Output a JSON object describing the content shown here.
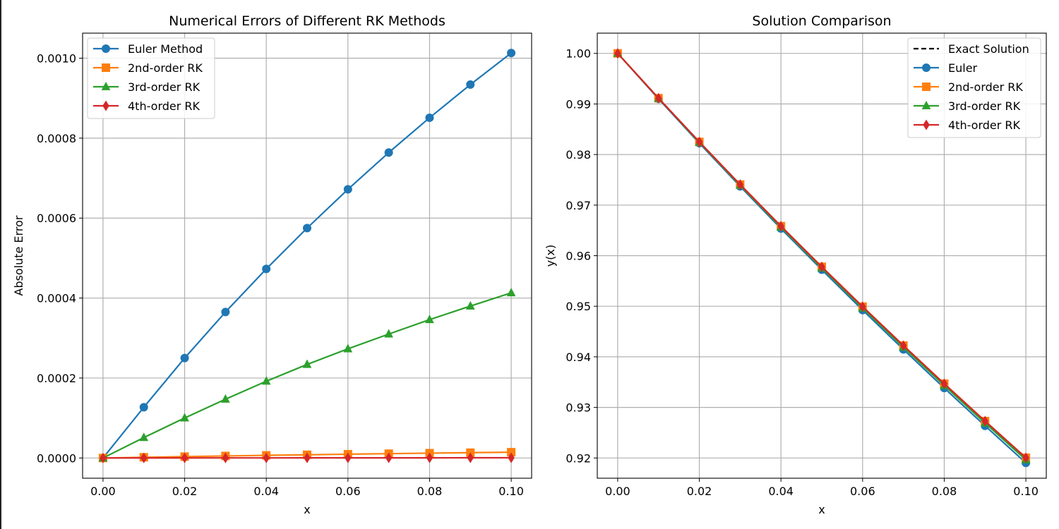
{
  "chart_data": [
    {
      "type": "line",
      "title": "Numerical Errors of Different RK Methods",
      "xlabel": "x",
      "ylabel": "Absolute Error",
      "xlim": [
        -0.005,
        0.105
      ],
      "ylim": [
        -5.06e-05,
        0.0010626
      ],
      "grid": true,
      "legend_position": "upper-left",
      "x": [
        0.0,
        0.01,
        0.02,
        0.03,
        0.04,
        0.05,
        0.06,
        0.07,
        0.08,
        0.09,
        0.1
      ],
      "x_ticks": [
        0.0,
        0.02,
        0.04,
        0.06,
        0.08,
        0.1
      ],
      "x_tick_labels": [
        "0.00",
        "0.02",
        "0.04",
        "0.06",
        "0.08",
        "0.10"
      ],
      "y_ticks": [
        0.0,
        0.0002,
        0.0004,
        0.0006,
        0.0008,
        0.001
      ],
      "y_tick_labels": [
        "0.0000",
        "0.0002",
        "0.0004",
        "0.0006",
        "0.0008",
        "0.0010"
      ],
      "series": [
        {
          "name": "Euler Method",
          "color": "#1f77b4",
          "marker": "circle",
          "values": [
            0.0,
            0.000127,
            0.00025,
            0.000365,
            0.000473,
            0.000575,
            0.000672,
            0.000764,
            0.000851,
            0.000934,
            0.001013
          ]
        },
        {
          "name": "2nd-order RK",
          "color": "#ff7f0e",
          "marker": "square",
          "values": [
            0.0,
            1.8e-06,
            3.5e-06,
            5.1e-06,
            6.6e-06,
            8.1e-06,
            9.5e-06,
            1.08e-05,
            1.21e-05,
            1.33e-05,
            1.45e-05
          ]
        },
        {
          "name": "3rd-order RK",
          "color": "#2ca02c",
          "marker": "triangle",
          "values": [
            0.0,
            5.1e-05,
            0.0001,
            0.000147,
            0.000192,
            0.000234,
            0.000273,
            0.00031,
            0.000346,
            0.00038,
            0.000413
          ]
        },
        {
          "name": "4th-order RK",
          "color": "#d62728",
          "marker": "diamond",
          "values": [
            0.0,
            1e-07,
            1e-07,
            2e-07,
            2e-07,
            3e-07,
            3e-07,
            4e-07,
            4e-07,
            5e-07,
            5e-07
          ]
        }
      ]
    },
    {
      "type": "line",
      "title": "Solution Comparison",
      "xlabel": "x",
      "ylabel": "y(x)",
      "xlim": [
        -0.005,
        0.105
      ],
      "ylim": [
        0.916,
        1.004
      ],
      "grid": true,
      "legend_position": "upper-right",
      "x": [
        0.0,
        0.01,
        0.02,
        0.03,
        0.04,
        0.05,
        0.06,
        0.07,
        0.08,
        0.09,
        0.1
      ],
      "x_ticks": [
        0.0,
        0.02,
        0.04,
        0.06,
        0.08,
        0.1
      ],
      "x_tick_labels": [
        "0.00",
        "0.02",
        "0.04",
        "0.06",
        "0.08",
        "0.10"
      ],
      "y_ticks": [
        0.92,
        0.93,
        0.94,
        0.95,
        0.96,
        0.97,
        0.98,
        0.99,
        1.0
      ],
      "y_tick_labels": [
        "0.92",
        "0.93",
        "0.94",
        "0.95",
        "0.96",
        "0.97",
        "0.98",
        "0.99",
        "1.00"
      ],
      "series": [
        {
          "name": "Exact Solution",
          "color": "#000000",
          "marker": "none",
          "dashed": true,
          "values": [
            1.0,
            0.99114,
            0.9825,
            0.97406,
            0.96583,
            0.95779,
            0.94992,
            0.94222,
            0.93468,
            0.92729,
            0.92004
          ]
        },
        {
          "name": "Euler",
          "color": "#1f77b4",
          "marker": "circle",
          "values": [
            1.0,
            0.99101,
            0.98225,
            0.9737,
            0.96536,
            0.95722,
            0.94925,
            0.94146,
            0.93383,
            0.92636,
            0.91903
          ]
        },
        {
          "name": "2nd-order RK",
          "color": "#ff7f0e",
          "marker": "square",
          "values": [
            1.0,
            0.99114,
            0.9825,
            0.97407,
            0.96584,
            0.9578,
            0.94993,
            0.94223,
            0.93469,
            0.9273,
            0.92005
          ]
        },
        {
          "name": "3rd-order RK",
          "color": "#2ca02c",
          "marker": "triangle",
          "values": [
            1.0,
            0.99109,
            0.9824,
            0.97391,
            0.96564,
            0.95756,
            0.94965,
            0.94191,
            0.93433,
            0.92691,
            0.91963
          ]
        },
        {
          "name": "4th-order RK",
          "color": "#d62728",
          "marker": "diamond",
          "values": [
            1.0,
            0.99114,
            0.9825,
            0.97406,
            0.96583,
            0.95779,
            0.94992,
            0.94222,
            0.93468,
            0.92729,
            0.92004
          ]
        }
      ]
    }
  ]
}
